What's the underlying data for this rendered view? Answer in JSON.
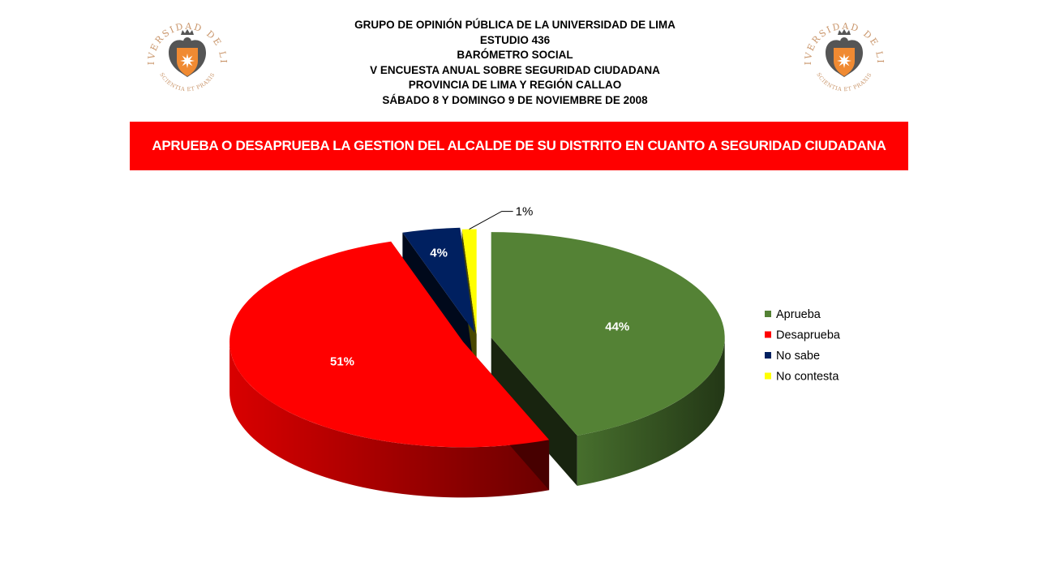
{
  "header": {
    "lines": [
      "GRUPO DE OPINIÓN PÚBLICA DE LA UNIVERSIDAD DE LIMA",
      "ESTUDIO 436",
      "BARÓMETRO SOCIAL",
      "V ENCUESTA ANUAL SOBRE SEGURIDAD CIUDADANA",
      "PROVINCIA DE LIMA Y REGIÓN CALLAO",
      "SÁBADO 8 Y DOMINGO 9 DE NOVIEMBRE DE 2008"
    ]
  },
  "logo": {
    "text": "UNIVERSIDAD DE LIMA",
    "motto": "SCIENTIA ET PRAXIS",
    "colors": {
      "ring": "#c9956a",
      "shield": "#f08a32",
      "eagle": "#555555"
    }
  },
  "chart_data": {
    "type": "pie",
    "title": "APRUEBA O DESAPRUEBA LA GESTION DEL ALCALDE DE SU DISTRITO EN CUANTO A SEGURIDAD CIUDADANA",
    "categories": [
      "Aprueba",
      "Desaprueba",
      "No sabe",
      "No contesta"
    ],
    "values": [
      44,
      51,
      4,
      1
    ],
    "labels": [
      "44%",
      "51%",
      "4%",
      "1%"
    ],
    "colors": [
      "#548235",
      "#ff0000",
      "#002060",
      "#ffff00"
    ],
    "legend_position": "right",
    "style": "3d-exploded"
  }
}
